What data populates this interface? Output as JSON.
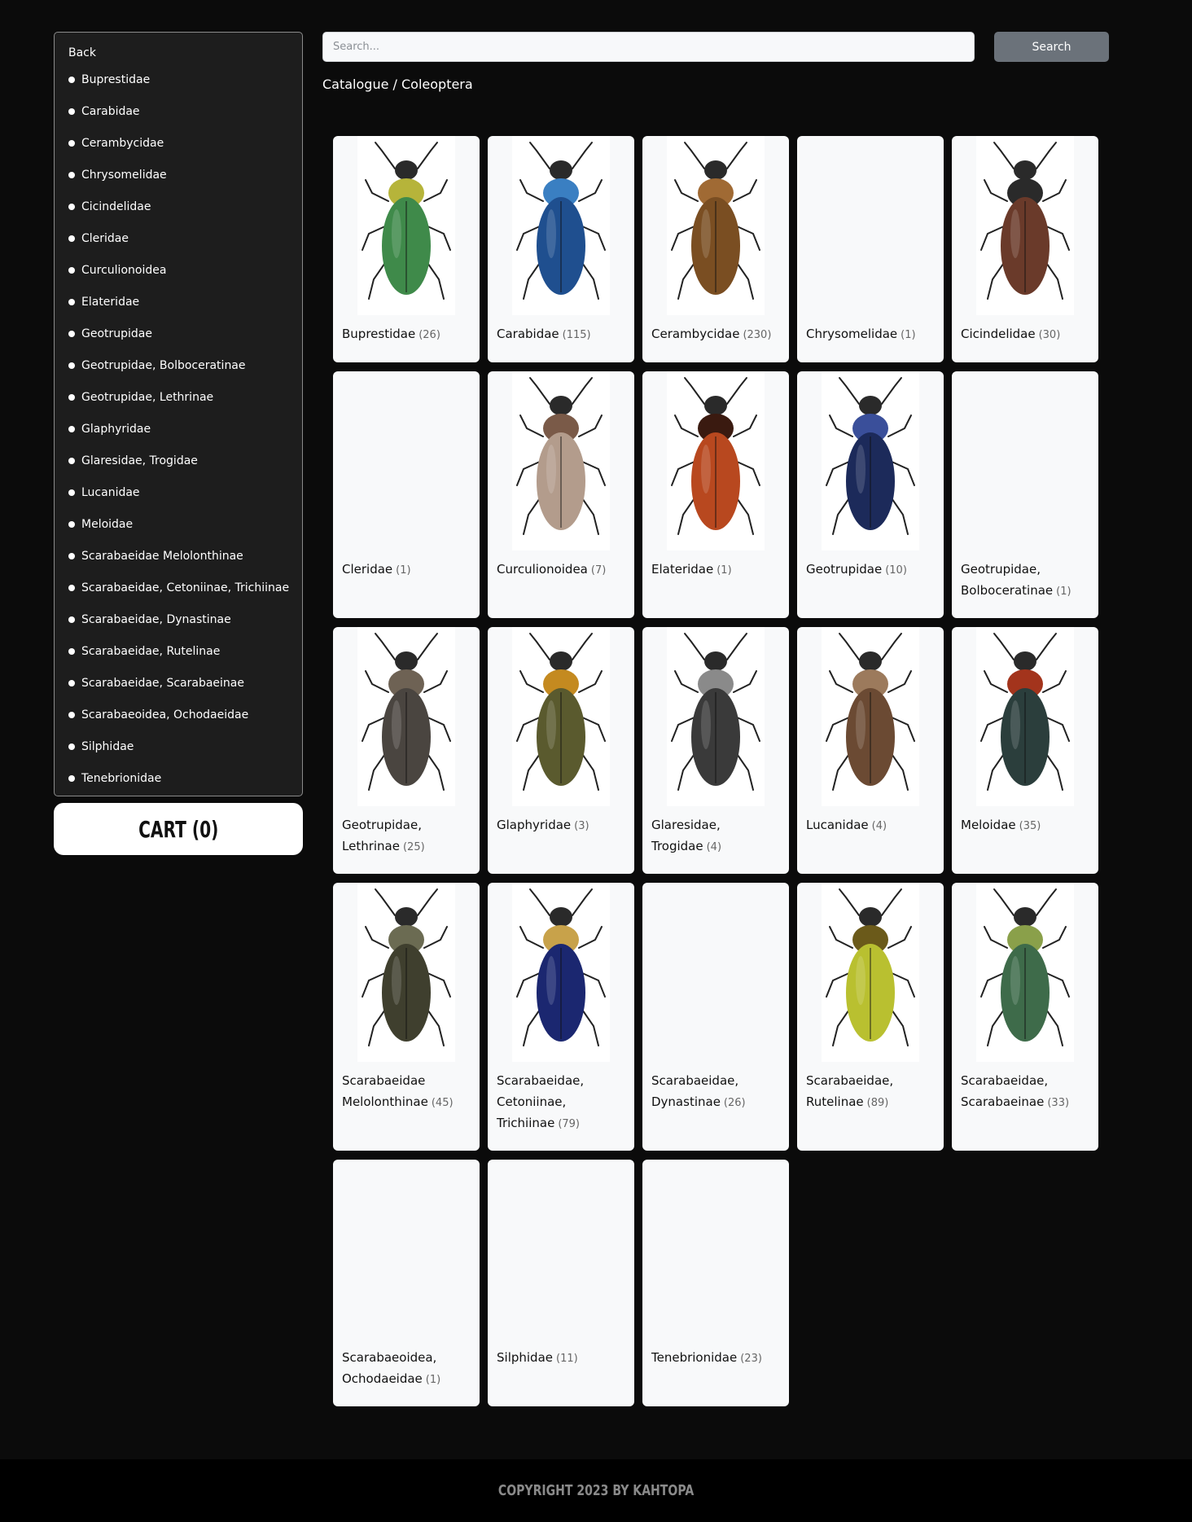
{
  "sidebar": {
    "back_label": "Back",
    "items": [
      "Buprestidae",
      "Carabidae",
      "Cerambycidae",
      "Chrysomelidae",
      "Cicindelidae",
      "Cleridae",
      "Curculionoidea",
      "Elateridae",
      "Geotrupidae",
      "Geotrupidae, Bolboceratinae",
      "Geotrupidae, Lethrinae",
      "Glaphyridae",
      "Glaresidae, Trogidae",
      "Lucanidae",
      "Meloidae",
      "Scarabaeidae Melolonthinae",
      "Scarabaeidae, Cetoniinae, Trichiinae",
      "Scarabaeidae, Dynastinae",
      "Scarabaeidae, Rutelinae",
      "Scarabaeidae, Scarabaeinae",
      "Scarabaeoidea, Ochodaeidae",
      "Silphidae",
      "Tenebrionidae"
    ]
  },
  "cart": {
    "label": "CART (0)"
  },
  "search": {
    "placeholder": "Search...",
    "button_label": "Search"
  },
  "breadcrumb": "Catalogue / Coleoptera",
  "cards": [
    {
      "name": "Buprestidae",
      "count": "(26)",
      "icon": "buprestid-beetle-photo",
      "color": "#3f8a4a",
      "accent": "#b6b43a"
    },
    {
      "name": "Carabidae",
      "count": "(115)",
      "icon": "carabid-beetle-photo",
      "color": "#1f4f8f",
      "accent": "#3a7fc2"
    },
    {
      "name": "Cerambycidae",
      "count": "(230)",
      "icon": "longhorn-beetle-photo",
      "color": "#7a4e22",
      "accent": "#a06a34"
    },
    {
      "name": "Chrysomelidae",
      "count": "(1)",
      "icon": null
    },
    {
      "name": "Cicindelidae",
      "count": "(30)",
      "icon": "tiger-beetle-photo",
      "color": "#6a3a2a",
      "accent": "#2a2a2a"
    },
    {
      "name": "Cleridae",
      "count": "(1)",
      "icon": null
    },
    {
      "name": "Curculionoidea",
      "count": "(7)",
      "icon": "weevil-photo",
      "color": "#b39c8c",
      "accent": "#7a5a48"
    },
    {
      "name": "Elateridae",
      "count": "(1)",
      "icon": "click-beetle-photo",
      "color": "#b8481f",
      "accent": "#3a1a10"
    },
    {
      "name": "Geotrupidae",
      "count": "(10)",
      "icon": "dung-beetle-photo",
      "color": "#1c2a5a",
      "accent": "#3a4f9a"
    },
    {
      "name": "Geotrupidae, Bolboceratinae",
      "count": "(1)",
      "icon": null
    },
    {
      "name": "Geotrupidae, Lethrinae",
      "count": "(25)",
      "icon": "lethrus-beetle-photo",
      "color": "#4a4540",
      "accent": "#6e6254"
    },
    {
      "name": "Glaphyridae",
      "count": "(3)",
      "icon": "glaphyrid-beetle-photo",
      "color": "#5a5a2e",
      "accent": "#c48a20"
    },
    {
      "name": "Glaresidae, Trogidae",
      "count": "(4)",
      "icon": "trogid-beetle-photo",
      "color": "#3a3a3a",
      "accent": "#8a8a8a"
    },
    {
      "name": "Lucanidae",
      "count": "(4)",
      "icon": "stag-beetle-photo",
      "color": "#6b4a33",
      "accent": "#9c7a5c"
    },
    {
      "name": "Meloidae",
      "count": "(35)",
      "icon": "blister-beetle-photo",
      "color": "#2b3e3c",
      "accent": "#a3341c"
    },
    {
      "name": "Scarabaeidae Melolonthinae",
      "count": "(45)",
      "icon": "chafer-beetle-photo",
      "color": "#3f3f2e",
      "accent": "#6b6b52"
    },
    {
      "name": "Scarabaeidae, Cetoniinae, Trichiinae",
      "count": "(79)",
      "icon": "flower-chafer-photo",
      "color": "#1b2770",
      "accent": "#c8a24a"
    },
    {
      "name": "Scarabaeidae, Dynastinae",
      "count": "(26)",
      "icon": null
    },
    {
      "name": "Scarabaeidae, Rutelinae",
      "count": "(89)",
      "icon": "shining-leaf-chafer-photo",
      "color": "#b9c030",
      "accent": "#6b5a1a"
    },
    {
      "name": "Scarabaeidae, Scarabaeinae",
      "count": "(33)",
      "icon": "scarab-beetle-photo",
      "color": "#3e6b4a",
      "accent": "#8aa04a"
    },
    {
      "name": "Scarabaeoidea, Ochodaeidae",
      "count": "(1)",
      "icon": null
    },
    {
      "name": "Silphidae",
      "count": "(11)",
      "icon": null
    },
    {
      "name": "Tenebrionidae",
      "count": "(23)",
      "icon": null
    }
  ],
  "footer": "COPYRIGHT 2023 BY KAHTOPA"
}
